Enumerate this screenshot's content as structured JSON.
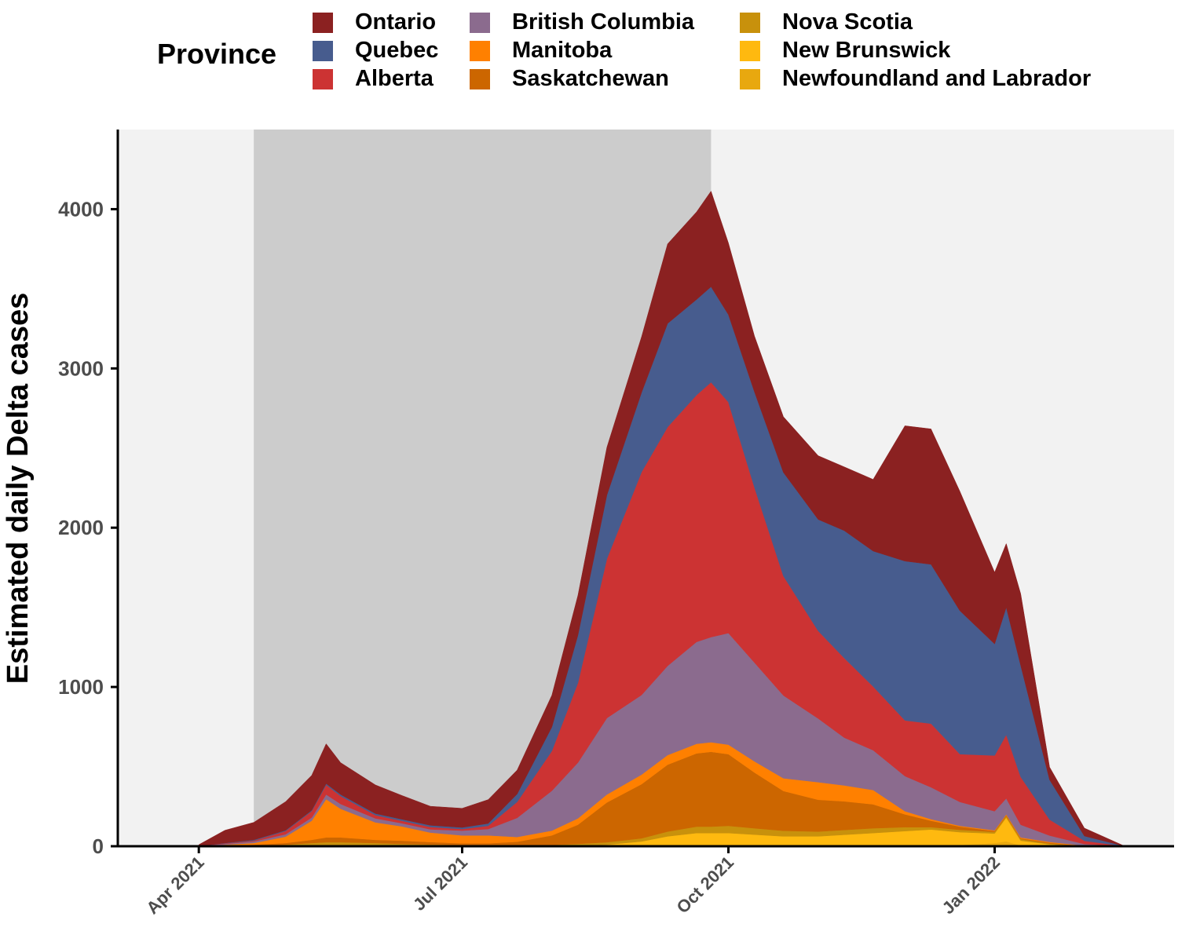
{
  "chart_data": {
    "type": "area",
    "stacked": true,
    "title": "",
    "xlabel": "",
    "ylabel": "Estimated daily Delta cases",
    "ylim": [
      0,
      4500
    ],
    "y_ticks": [
      0,
      1000,
      2000,
      3000,
      4000
    ],
    "x_ticks": [
      {
        "date": "2021-04-01",
        "label": "Apr 2021"
      },
      {
        "date": "2021-07-01",
        "label": "Jul 2021"
      },
      {
        "date": "2021-10-01",
        "label": "Oct 2021"
      },
      {
        "date": "2022-01-01",
        "label": "Jan 2022"
      }
    ],
    "xlim": [
      "2021-03-04",
      "2022-03-04"
    ],
    "shaded_period": {
      "start": "2021-04-20",
      "end": "2021-09-25",
      "color": "#cccccc"
    },
    "background_color": "#f2f2f2",
    "grid": false,
    "legend": {
      "title": "Province",
      "position": "top"
    },
    "x": [
      "2021-04-01",
      "2021-04-10",
      "2021-04-20",
      "2021-05-01",
      "2021-05-10",
      "2021-05-15",
      "2021-05-20",
      "2021-06-01",
      "2021-06-10",
      "2021-06-20",
      "2021-07-01",
      "2021-07-10",
      "2021-07-20",
      "2021-08-01",
      "2021-08-10",
      "2021-08-20",
      "2021-09-01",
      "2021-09-10",
      "2021-09-20",
      "2021-09-25",
      "2021-10-01",
      "2021-10-10",
      "2021-10-20",
      "2021-11-01",
      "2021-11-10",
      "2021-11-20",
      "2021-12-01",
      "2021-12-10",
      "2021-12-20",
      "2022-01-01",
      "2022-01-05",
      "2022-01-10",
      "2022-01-20",
      "2022-02-01",
      "2022-02-15"
    ],
    "series": [
      {
        "name": "Newfoundland and Labrador",
        "color": "#e8a80f",
        "values": [
          0,
          0,
          0,
          0,
          0,
          0,
          0,
          0,
          0,
          0,
          0,
          0,
          0,
          0,
          0,
          0,
          0,
          2,
          3,
          3,
          3,
          3,
          2,
          2,
          2,
          3,
          5,
          5,
          8,
          20,
          30,
          5,
          2,
          0,
          0
        ]
      },
      {
        "name": "New Brunswick",
        "color": "#ffb90f",
        "values": [
          0,
          0,
          0,
          0,
          5,
          5,
          5,
          5,
          5,
          3,
          3,
          3,
          3,
          3,
          5,
          10,
          30,
          60,
          80,
          80,
          80,
          70,
          60,
          60,
          70,
          80,
          90,
          100,
          80,
          60,
          150,
          30,
          10,
          0,
          0
        ]
      },
      {
        "name": "Nova Scotia",
        "color": "#c8910c",
        "values": [
          0,
          2,
          5,
          10,
          15,
          20,
          20,
          15,
          10,
          8,
          5,
          5,
          5,
          5,
          10,
          15,
          20,
          30,
          40,
          40,
          45,
          40,
          35,
          30,
          30,
          30,
          25,
          15,
          15,
          10,
          10,
          10,
          5,
          0,
          0
        ]
      },
      {
        "name": "Saskatchewan",
        "color": "#cc6600",
        "values": [
          0,
          3,
          5,
          10,
          20,
          30,
          30,
          20,
          20,
          15,
          10,
          10,
          20,
          60,
          120,
          250,
          340,
          420,
          460,
          470,
          450,
          350,
          250,
          200,
          180,
          150,
          80,
          40,
          20,
          5,
          5,
          5,
          5,
          2,
          0
        ]
      },
      {
        "name": "Manitoba",
        "color": "#ff8000",
        "values": [
          0,
          5,
          10,
          40,
          120,
          240,
          180,
          110,
          90,
          60,
          50,
          50,
          30,
          30,
          40,
          50,
          60,
          60,
          60,
          60,
          60,
          70,
          80,
          110,
          100,
          90,
          20,
          10,
          5,
          5,
          5,
          5,
          5,
          2,
          0
        ]
      },
      {
        "name": "British Columbia",
        "color": "#8b6b8e",
        "values": [
          0,
          5,
          10,
          15,
          20,
          30,
          30,
          25,
          20,
          20,
          30,
          40,
          120,
          250,
          350,
          480,
          500,
          560,
          640,
          660,
          700,
          620,
          520,
          400,
          300,
          250,
          220,
          200,
          150,
          120,
          100,
          80,
          40,
          10,
          0
        ]
      },
      {
        "name": "Alberta",
        "color": "#cc3333",
        "values": [
          0,
          3,
          5,
          20,
          40,
          60,
          50,
          20,
          15,
          15,
          10,
          20,
          100,
          250,
          500,
          1000,
          1400,
          1500,
          1550,
          1600,
          1450,
          1100,
          750,
          550,
          500,
          400,
          350,
          400,
          300,
          350,
          400,
          300,
          100,
          20,
          0
        ]
      },
      {
        "name": "Quebec",
        "color": "#475c8e",
        "values": [
          0,
          2,
          5,
          5,
          5,
          8,
          10,
          10,
          10,
          10,
          10,
          15,
          50,
          150,
          300,
          400,
          500,
          650,
          600,
          600,
          550,
          600,
          650,
          700,
          800,
          850,
          1000,
          1000,
          900,
          700,
          800,
          700,
          250,
          30,
          0
        ]
      },
      {
        "name": "Ontario",
        "color": "#8b2121",
        "values": [
          10,
          80,
          110,
          180,
          220,
          250,
          200,
          180,
          150,
          120,
          120,
          150,
          150,
          200,
          250,
          300,
          350,
          500,
          550,
          600,
          450,
          350,
          350,
          400,
          400,
          450,
          850,
          850,
          750,
          450,
          400,
          450,
          80,
          50,
          0
        ]
      }
    ]
  }
}
